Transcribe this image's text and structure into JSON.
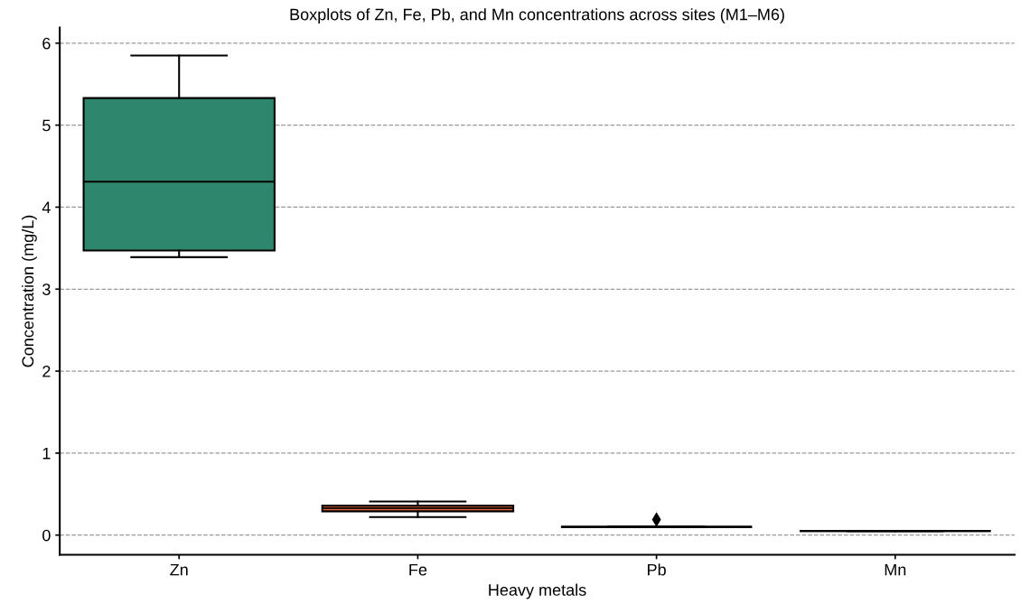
{
  "chart_data": {
    "type": "box",
    "title": "Boxplots of Zn, Fe, Pb, and Mn concentrations across sites (M1–M6)",
    "xlabel": "Heavy metals",
    "ylabel": "Concentration (mg/L)",
    "categories": [
      "Zn",
      "Fe",
      "Pb",
      "Mn"
    ],
    "colors": [
      "#2e866c",
      "#e5673f",
      "#000000",
      "#000000"
    ],
    "boxes": [
      {
        "low": 3.39,
        "q1": 3.47,
        "median": 4.31,
        "q3": 5.33,
        "high": 5.85
      },
      {
        "low": 0.22,
        "q1": 0.29,
        "median": 0.33,
        "q3": 0.36,
        "high": 0.41
      },
      {
        "low": 0.1,
        "q1": 0.1,
        "median": 0.1,
        "q3": 0.1,
        "high": 0.1,
        "outliers": [
          0.19
        ]
      },
      {
        "low": 0.05,
        "q1": 0.05,
        "median": 0.05,
        "q3": 0.05,
        "high": 0.05
      }
    ],
    "ylim": [
      -0.24,
      6.19
    ],
    "yticks": [
      0,
      1,
      2,
      3,
      4,
      5,
      6
    ],
    "grid": "y",
    "marker": "diamond"
  }
}
